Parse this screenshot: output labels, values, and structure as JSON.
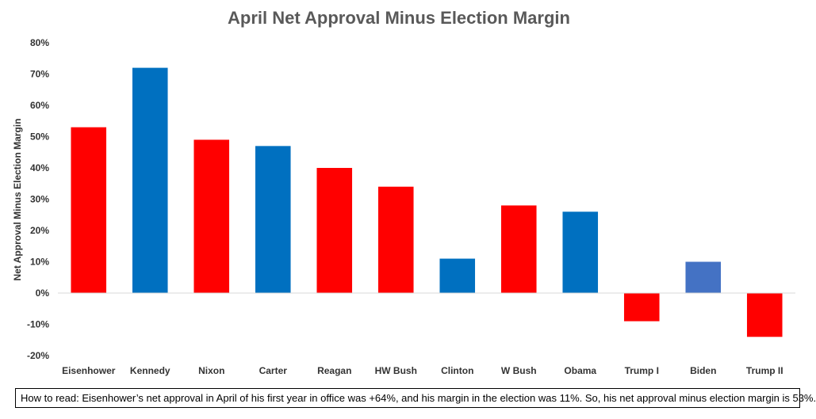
{
  "chart_data": {
    "type": "bar",
    "title": "April Net Approval Minus Election Margin",
    "ylabel": "Net Approval Minus Election Margin",
    "xlabel": "",
    "ylim": [
      -20,
      80
    ],
    "yticks": [
      80,
      70,
      60,
      50,
      40,
      30,
      20,
      10,
      0,
      -10,
      -20
    ],
    "ytick_labels": [
      "80%",
      "70%",
      "60%",
      "50%",
      "40%",
      "30%",
      "20%",
      "10%",
      "0%",
      "-10%",
      "-20%"
    ],
    "grid": false,
    "legend": "none",
    "categories": [
      "Eisenhower",
      "Kennedy",
      "Nixon",
      "Carter",
      "Reagan",
      "HW Bush",
      "Clinton",
      "W Bush",
      "Obama",
      "Trump I",
      "Biden",
      "Trump II"
    ],
    "values": [
      53,
      72,
      49,
      47,
      40,
      34,
      11,
      28,
      26,
      -9,
      10,
      -14
    ],
    "colors": [
      "#ff0000",
      "#0070c0",
      "#ff0000",
      "#0070c0",
      "#ff0000",
      "#ff0000",
      "#0070c0",
      "#ff0000",
      "#0070c0",
      "#ff0000",
      "#4472c4",
      "#ff0000"
    ]
  },
  "note": "How to read: Eisenhower’s net approval in April of his first year in office was +64%, and his margin in the election was 11%. So, his net approval minus election margin is 53%."
}
